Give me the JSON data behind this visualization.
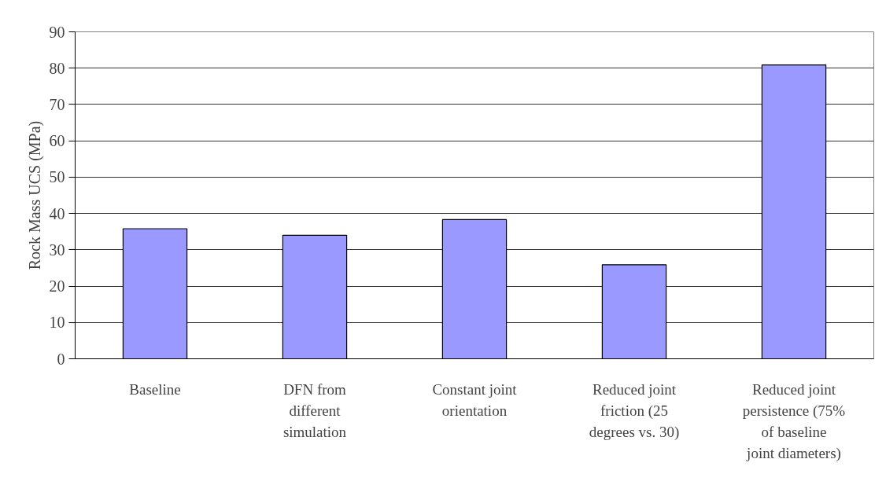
{
  "chart_data": {
    "type": "bar",
    "ylabel": "Rock Mass UCS (MPa)",
    "categories": [
      "Baseline",
      "DFN from different simulation",
      "Constant joint orientation",
      "Reduced joint friction (25 degrees vs. 30)",
      "Reduced joint persistence (75% of baseline joint diameters)"
    ],
    "values": [
      35.8,
      34.0,
      38.3,
      25.9,
      80.9
    ],
    "color": "#9999ff",
    "ylim": [
      0,
      90
    ],
    "yticks": [
      0,
      10,
      20,
      30,
      40,
      50,
      60,
      70,
      80,
      90
    ],
    "grid": "y"
  }
}
